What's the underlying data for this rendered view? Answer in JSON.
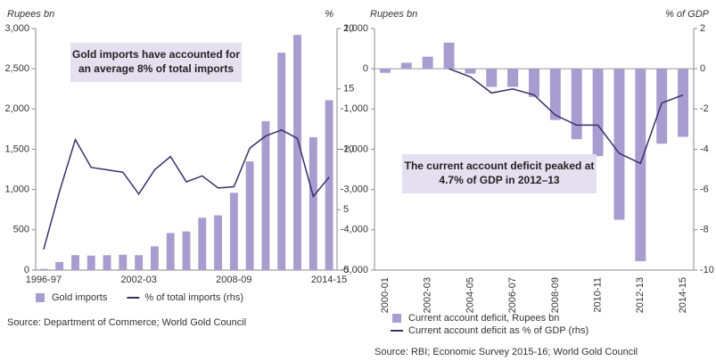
{
  "chart_data": [
    {
      "type": "bar",
      "y_label": "Rupees bn",
      "y2_label": "%",
      "annotation": [
        "Gold imports have accounted for",
        "an average 8% of total imports"
      ],
      "source": "Source: Department of Commerce; World Gold Council",
      "categories": [
        "1996-97",
        null,
        null,
        null,
        null,
        null,
        "2002-03",
        null,
        null,
        null,
        null,
        null,
        "2008-09",
        null,
        null,
        null,
        null,
        null,
        "2014-15"
      ],
      "series": [
        {
          "name": "Gold imports",
          "type": "bar",
          "color": "#a99ccf",
          "values": [
            15,
            100,
            185,
            180,
            185,
            190,
            185,
            295,
            460,
            480,
            650,
            680,
            960,
            1350,
            1850,
            2700,
            2920,
            1650,
            2110
          ]
        },
        {
          "name": "% of total imports (rhs)",
          "type": "line",
          "axis": "y2",
          "color": "#3a2f6b",
          "values": [
            1.7,
            6.5,
            10.8,
            8.5,
            8.3,
            8.1,
            6.3,
            8.3,
            9.4,
            7.3,
            7.8,
            6.8,
            6.9,
            10.1,
            11.1,
            11.6,
            10.9,
            6.1,
            7.7
          ]
        }
      ],
      "ylim": [
        0,
        3000
      ],
      "yticks": [
        0,
        500,
        {
          "value": 1000,
          "label": "1,000"
        },
        {
          "value": 1500,
          "label": "1,500"
        },
        {
          "value": 2000,
          "label": "2,000"
        },
        {
          "value": 2500,
          "label": "2,500"
        },
        {
          "value": 3000,
          "label": "3,000"
        }
      ],
      "y2lim": [
        0,
        20
      ],
      "y2ticks": [
        0,
        5,
        10,
        15,
        20
      ],
      "grid": false
    },
    {
      "type": "bar",
      "y_label": "Rupees bn",
      "y2_label": "% of GDP",
      "annotation": [
        "The current account deficit peaked at",
        "4.7% of GDP in 2012–13"
      ],
      "source": "Source: RBI; Economic Survey 2015-16; World Gold Council",
      "categories": [
        "2000-01",
        null,
        "2002-03",
        null,
        "2004-05",
        null,
        "2006-07",
        null,
        "2008-09",
        null,
        "2010-11",
        null,
        "2012-13",
        null,
        "2014-15"
      ],
      "series": [
        {
          "name": "Current account deficit, Rupees bn",
          "type": "bar",
          "color": "#a99ccf",
          "values": [
            -100,
            150,
            300,
            650,
            -120,
            -450,
            -450,
            -700,
            -1270,
            -1750,
            -2170,
            -3750,
            -4780,
            -1860,
            -1690
          ]
        },
        {
          "name": "Current account deficit as % of GDP (rhs)",
          "type": "line",
          "axis": "y2",
          "color": "#3a2f6b",
          "values": [
            null,
            null,
            null,
            0,
            -0.4,
            -1.2,
            -1.0,
            -1.3,
            -2.3,
            -2.8,
            -2.8,
            -4.2,
            -4.7,
            -1.7,
            -1.3
          ]
        }
      ],
      "ylim": [
        -5000,
        1000
      ],
      "yticks": [
        {
          "value": -5000,
          "label": "-5,000"
        },
        {
          "value": -4000,
          "label": "-4,000"
        },
        {
          "value": -3000,
          "label": "-3,000"
        },
        {
          "value": -2000,
          "label": "-2,000"
        },
        {
          "value": -1000,
          "label": "-1,000"
        },
        0,
        {
          "value": 1000,
          "label": "1,000"
        }
      ],
      "y2lim": [
        -10,
        2
      ],
      "y2ticks": [
        -10,
        -8,
        -6,
        -4,
        -2,
        0,
        2
      ],
      "grid": false
    }
  ]
}
